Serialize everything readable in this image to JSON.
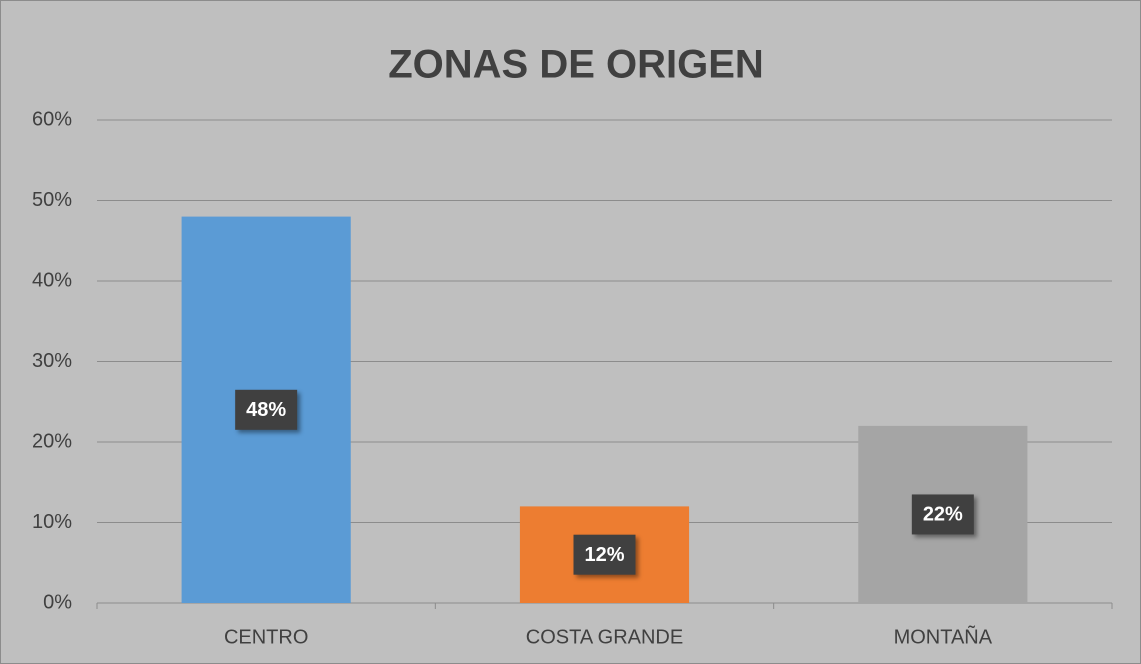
{
  "chart_data": {
    "type": "bar",
    "title": "ZONAS DE ORIGEN",
    "categories": [
      "CENTRO",
      "COSTA GRANDE",
      "MONTAÑA"
    ],
    "values": [
      48,
      12,
      22
    ],
    "value_labels": [
      "48%",
      "12%",
      "22%"
    ],
    "colors": [
      "#5b9bd5",
      "#ed7d31",
      "#a5a5a5"
    ],
    "ylim": [
      0,
      60
    ],
    "yticks": [
      {
        "value": 0,
        "label": "0%"
      },
      {
        "value": 10,
        "label": "10%"
      },
      {
        "value": 20,
        "label": "20%"
      },
      {
        "value": 30,
        "label": "30%"
      },
      {
        "value": 40,
        "label": "40%"
      },
      {
        "value": 50,
        "label": "50%"
      },
      {
        "value": 60,
        "label": "60%"
      }
    ],
    "grid": true
  }
}
